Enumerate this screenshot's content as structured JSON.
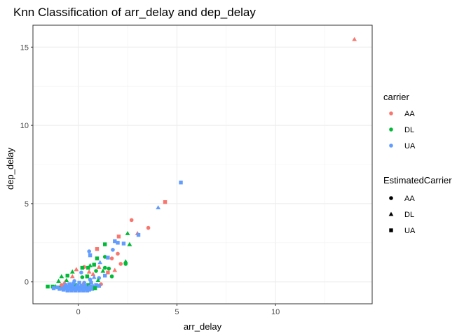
{
  "chart_data": {
    "type": "scatter",
    "title": "Knn Classification of arr_delay and dep_delay",
    "xlabel": "arr_delay",
    "ylabel": "dep_delay",
    "xlim": [
      -2.3,
      14.9
    ],
    "ylim": [
      -1.4,
      16.4
    ],
    "x_ticks": [
      0,
      5,
      10
    ],
    "y_ticks": [
      0,
      5,
      10,
      15
    ],
    "grid": true,
    "legend_placement": "right",
    "colors": {
      "AA": "#F8766D",
      "DL": "#00BA38",
      "UA": "#619CFF"
    },
    "legends": [
      {
        "title": "carrier",
        "kind": "color",
        "entries": [
          "AA",
          "DL",
          "UA"
        ]
      },
      {
        "title": "EstimatedCarrier",
        "kind": "shape",
        "entries": [
          "AA",
          "DL",
          "UA"
        ],
        "shapes": [
          "circle",
          "triangle",
          "square"
        ]
      }
    ],
    "points": [
      {
        "x": 14.0,
        "y": 15.5,
        "carrier": "AA",
        "est": "DL"
      },
      {
        "x": 5.2,
        "y": 6.35,
        "carrier": "UA",
        "est": "UA"
      },
      {
        "x": 4.4,
        "y": 5.1,
        "carrier": "AA",
        "est": "UA"
      },
      {
        "x": 4.05,
        "y": 4.75,
        "carrier": "UA",
        "est": "DL"
      },
      {
        "x": 2.7,
        "y": 3.95,
        "carrier": "AA",
        "est": "AA"
      },
      {
        "x": 3.55,
        "y": 3.45,
        "carrier": "AA",
        "est": "AA"
      },
      {
        "x": 2.5,
        "y": 3.1,
        "carrier": "DL",
        "est": "DL"
      },
      {
        "x": 3.0,
        "y": 3.1,
        "carrier": "AA",
        "est": "DL"
      },
      {
        "x": 3.05,
        "y": 3.0,
        "carrier": "UA",
        "est": "UA"
      },
      {
        "x": 2.05,
        "y": 2.9,
        "carrier": "AA",
        "est": "UA"
      },
      {
        "x": 1.85,
        "y": 2.6,
        "carrier": "UA",
        "est": "UA"
      },
      {
        "x": 2.0,
        "y": 2.5,
        "carrier": "UA",
        "est": "UA"
      },
      {
        "x": 2.3,
        "y": 2.45,
        "carrier": "UA",
        "est": "UA"
      },
      {
        "x": 1.35,
        "y": 2.4,
        "carrier": "DL",
        "est": "UA"
      },
      {
        "x": 2.6,
        "y": 2.4,
        "carrier": "DL",
        "est": "DL"
      },
      {
        "x": 0.95,
        "y": 2.1,
        "carrier": "AA",
        "est": "UA"
      },
      {
        "x": 1.75,
        "y": 2.05,
        "carrier": "UA",
        "est": "AA"
      },
      {
        "x": 0.55,
        "y": 1.95,
        "carrier": "UA",
        "est": "AA"
      },
      {
        "x": 0.6,
        "y": 1.7,
        "carrier": "UA",
        "est": "UA"
      },
      {
        "x": 1.35,
        "y": 1.6,
        "carrier": "DL",
        "est": "AA"
      },
      {
        "x": 1.5,
        "y": 1.55,
        "carrier": "UA",
        "est": "UA"
      },
      {
        "x": 0.95,
        "y": 1.5,
        "carrier": "DL",
        "est": "UA"
      },
      {
        "x": 1.7,
        "y": 1.5,
        "carrier": "AA",
        "est": "AA"
      },
      {
        "x": 2.0,
        "y": 1.8,
        "carrier": "AA",
        "est": "AA"
      },
      {
        "x": 2.4,
        "y": 1.3,
        "carrier": "DL",
        "est": "DL"
      },
      {
        "x": 2.4,
        "y": 1.15,
        "carrier": "DL",
        "est": "AA"
      },
      {
        "x": 2.15,
        "y": 1.15,
        "carrier": "AA",
        "est": "AA"
      },
      {
        "x": 1.1,
        "y": 1.25,
        "carrier": "UA",
        "est": "DL"
      },
      {
        "x": 0.8,
        "y": 1.1,
        "carrier": "DL",
        "est": "UA"
      },
      {
        "x": 0.6,
        "y": 1.05,
        "carrier": "DL",
        "est": "DL"
      },
      {
        "x": 0.3,
        "y": 0.95,
        "carrier": "AA",
        "est": "AA"
      },
      {
        "x": 0.2,
        "y": 0.9,
        "carrier": "DL",
        "est": "UA"
      },
      {
        "x": 0.5,
        "y": 0.9,
        "carrier": "DL",
        "est": "UA"
      },
      {
        "x": 1.05,
        "y": 0.95,
        "carrier": "AA",
        "est": "DL"
      },
      {
        "x": 1.35,
        "y": 0.9,
        "carrier": "DL",
        "est": "AA"
      },
      {
        "x": 1.55,
        "y": 0.85,
        "carrier": "DL",
        "est": "AA"
      },
      {
        "x": 1.85,
        "y": 0.75,
        "carrier": "AA",
        "est": "DL"
      },
      {
        "x": -0.1,
        "y": 0.8,
        "carrier": "AA",
        "est": "DL"
      },
      {
        "x": -0.3,
        "y": 0.65,
        "carrier": "DL",
        "est": "DL"
      },
      {
        "x": 0.15,
        "y": 0.6,
        "carrier": "UA",
        "est": "AA"
      },
      {
        "x": 0.55,
        "y": 0.65,
        "carrier": "AA",
        "est": "DL"
      },
      {
        "x": 0.9,
        "y": 0.7,
        "carrier": "DL",
        "est": "AA"
      },
      {
        "x": 1.25,
        "y": 0.7,
        "carrier": "DL",
        "est": "DL"
      },
      {
        "x": 1.5,
        "y": 0.6,
        "carrier": "AA",
        "est": "UA"
      },
      {
        "x": 0.75,
        "y": 0.5,
        "carrier": "AA",
        "est": "DL"
      },
      {
        "x": -0.55,
        "y": 0.4,
        "carrier": "DL",
        "est": "UA"
      },
      {
        "x": -0.85,
        "y": 0.35,
        "carrier": "DL",
        "est": "DL"
      },
      {
        "x": -0.3,
        "y": 0.35,
        "carrier": "AA",
        "est": "DL"
      },
      {
        "x": 0.2,
        "y": 0.3,
        "carrier": "DL",
        "est": "AA"
      },
      {
        "x": 0.45,
        "y": 0.35,
        "carrier": "DL",
        "est": "UA"
      },
      {
        "x": 0.8,
        "y": 0.3,
        "carrier": "UA",
        "est": "DL"
      },
      {
        "x": 1.05,
        "y": 0.25,
        "carrier": "UA",
        "est": "AA"
      },
      {
        "x": 1.35,
        "y": 0.4,
        "carrier": "UA",
        "est": "UA"
      },
      {
        "x": 1.0,
        "y": 0.1,
        "carrier": "DL",
        "est": "DL"
      },
      {
        "x": 1.15,
        "y": -0.15,
        "carrier": "AA",
        "est": "AA"
      },
      {
        "x": 1.7,
        "y": 0.35,
        "carrier": "DL",
        "est": "AA"
      },
      {
        "x": 0.6,
        "y": 0.15,
        "carrier": "UA",
        "est": "AA"
      },
      {
        "x": -0.6,
        "y": 0.1,
        "carrier": "DL",
        "est": "DL"
      },
      {
        "x": -1.0,
        "y": 0.05,
        "carrier": "DL",
        "est": "DL"
      },
      {
        "x": -0.7,
        "y": -0.05,
        "carrier": "AA",
        "est": "DL"
      },
      {
        "x": -0.2,
        "y": 0.05,
        "carrier": "UA",
        "est": "AA"
      },
      {
        "x": 0.05,
        "y": -0.05,
        "carrier": "UA",
        "est": "UA"
      },
      {
        "x": 0.3,
        "y": -0.05,
        "carrier": "UA",
        "est": "AA"
      },
      {
        "x": 0.65,
        "y": -0.05,
        "carrier": "UA",
        "est": "UA"
      },
      {
        "x": 0.9,
        "y": -0.2,
        "carrier": "UA",
        "est": "UA"
      },
      {
        "x": -0.45,
        "y": -0.15,
        "carrier": "UA",
        "est": "UA"
      },
      {
        "x": -0.15,
        "y": -0.2,
        "carrier": "DL",
        "est": "UA"
      },
      {
        "x": 0.2,
        "y": -0.2,
        "carrier": "AA",
        "est": "DL"
      },
      {
        "x": 0.5,
        "y": -0.2,
        "carrier": "DL",
        "est": "UA"
      },
      {
        "x": 0.75,
        "y": -0.25,
        "carrier": "UA",
        "est": "DL"
      },
      {
        "x": 1.05,
        "y": -0.25,
        "carrier": "UA",
        "est": "UA"
      },
      {
        "x": -1.55,
        "y": -0.3,
        "carrier": "DL",
        "est": "UA"
      },
      {
        "x": -1.3,
        "y": -0.3,
        "carrier": "DL",
        "est": "UA"
      },
      {
        "x": -1.15,
        "y": -0.3,
        "carrier": "DL",
        "est": "DL"
      },
      {
        "x": -1.05,
        "y": -0.35,
        "carrier": "UA",
        "est": "UA"
      },
      {
        "x": -0.9,
        "y": -0.3,
        "carrier": "DL",
        "est": "DL"
      },
      {
        "x": -0.8,
        "y": -0.4,
        "carrier": "UA",
        "est": "UA"
      },
      {
        "x": -0.7,
        "y": -0.3,
        "carrier": "UA",
        "est": "UA"
      },
      {
        "x": -0.6,
        "y": -0.4,
        "carrier": "UA",
        "est": "UA"
      },
      {
        "x": -0.5,
        "y": -0.3,
        "carrier": "UA",
        "est": "UA"
      },
      {
        "x": -0.4,
        "y": -0.45,
        "carrier": "UA",
        "est": "UA"
      },
      {
        "x": -0.3,
        "y": -0.35,
        "carrier": "UA",
        "est": "UA"
      },
      {
        "x": -0.2,
        "y": -0.45,
        "carrier": "UA",
        "est": "UA"
      },
      {
        "x": -0.1,
        "y": -0.35,
        "carrier": "UA",
        "est": "UA"
      },
      {
        "x": 0.0,
        "y": -0.45,
        "carrier": "UA",
        "est": "UA"
      },
      {
        "x": 0.1,
        "y": -0.35,
        "carrier": "UA",
        "est": "UA"
      },
      {
        "x": 0.2,
        "y": -0.45,
        "carrier": "UA",
        "est": "UA"
      },
      {
        "x": 0.3,
        "y": -0.35,
        "carrier": "UA",
        "est": "UA"
      },
      {
        "x": 0.4,
        "y": -0.45,
        "carrier": "UA",
        "est": "UA"
      },
      {
        "x": 0.5,
        "y": -0.4,
        "carrier": "UA",
        "est": "UA"
      },
      {
        "x": 0.6,
        "y": -0.3,
        "carrier": "UA",
        "est": "UA"
      },
      {
        "x": 0.7,
        "y": -0.45,
        "carrier": "UA",
        "est": "UA"
      },
      {
        "x": -0.75,
        "y": -0.5,
        "carrier": "UA",
        "est": "UA"
      },
      {
        "x": -0.55,
        "y": -0.55,
        "carrier": "UA",
        "est": "UA"
      },
      {
        "x": -0.35,
        "y": -0.55,
        "carrier": "UA",
        "est": "UA"
      },
      {
        "x": -0.15,
        "y": -0.55,
        "carrier": "UA",
        "est": "UA"
      },
      {
        "x": 0.05,
        "y": -0.55,
        "carrier": "UA",
        "est": "UA"
      },
      {
        "x": 0.25,
        "y": -0.55,
        "carrier": "UA",
        "est": "UA"
      },
      {
        "x": 0.45,
        "y": -0.55,
        "carrier": "UA",
        "est": "UA"
      },
      {
        "x": -0.95,
        "y": -0.45,
        "carrier": "UA",
        "est": "UA"
      },
      {
        "x": -0.65,
        "y": -0.2,
        "carrier": "UA",
        "est": "UA"
      },
      {
        "x": -0.35,
        "y": -0.25,
        "carrier": "UA",
        "est": "UA"
      },
      {
        "x": 0.35,
        "y": -0.25,
        "carrier": "UA",
        "est": "UA"
      },
      {
        "x": 0.55,
        "y": -0.5,
        "carrier": "UA",
        "est": "UA"
      },
      {
        "x": -0.25,
        "y": -0.1,
        "carrier": "UA",
        "est": "AA"
      },
      {
        "x": 0.15,
        "y": -0.25,
        "carrier": "UA",
        "est": "AA"
      },
      {
        "x": -0.05,
        "y": -0.25,
        "carrier": "UA",
        "est": "UA"
      },
      {
        "x": -0.85,
        "y": -0.2,
        "carrier": "AA",
        "est": "AA"
      },
      {
        "x": 0.85,
        "y": -0.4,
        "carrier": "DL",
        "est": "UA"
      },
      {
        "x": -1.25,
        "y": -0.4,
        "carrier": "UA",
        "est": "UA"
      }
    ]
  }
}
